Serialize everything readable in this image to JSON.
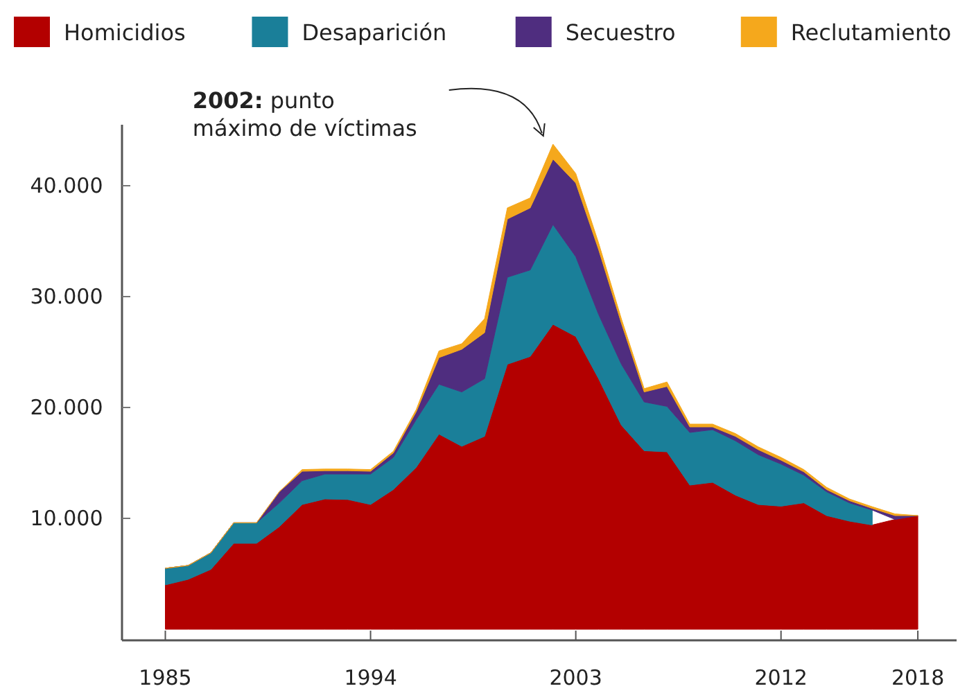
{
  "chart_data": {
    "type": "area",
    "stacked": true,
    "x": [
      1985,
      1986,
      1987,
      1988,
      1989,
      1990,
      1991,
      1992,
      1993,
      1994,
      1995,
      1996,
      1997,
      1998,
      1999,
      2000,
      2001,
      2002,
      2003,
      2004,
      2005,
      2006,
      2007,
      2008,
      2009,
      2010,
      2011,
      2012,
      2013,
      2014,
      2015,
      2016,
      2017,
      2018
    ],
    "series": [
      {
        "name": "Homicidios",
        "color": "#b30000",
        "values": [
          4000,
          4500,
          5400,
          7750,
          7750,
          9250,
          11250,
          11750,
          11700,
          11250,
          12600,
          14600,
          17600,
          16500,
          17400,
          23900,
          24600,
          27500,
          26400,
          22600,
          18400,
          16100,
          16000,
          13000,
          13250,
          12100,
          11250,
          11100,
          11400,
          10250,
          9750,
          9400,
          9900,
          10250
        ]
      },
      {
        "name": "Desaparición",
        "color": "#1a7f99",
        "values": [
          1500,
          1250,
          1500,
          1850,
          1850,
          2150,
          2150,
          2250,
          2300,
          2750,
          2900,
          4300,
          4500,
          4900,
          5200,
          7850,
          7800,
          9000,
          7200,
          5800,
          5500,
          4400,
          4100,
          4750,
          4750,
          4900,
          4500,
          3800,
          2500,
          2150,
          1650,
          1350,
          null,
          null
        ]
      },
      {
        "name": "Secuestro",
        "color": "#4f2d7f",
        "values": [
          0,
          0,
          0,
          0,
          0,
          1000,
          850,
          300,
          300,
          250,
          400,
          700,
          2400,
          3850,
          4150,
          5250,
          5600,
          5900,
          6650,
          5850,
          3700,
          900,
          1800,
          500,
          250,
          400,
          450,
          350,
          300,
          200,
          200,
          150,
          350,
          0
        ]
      },
      {
        "name": "Reclutamiento",
        "color": "#f5a81c",
        "values": [
          0,
          0,
          0,
          0,
          0,
          0,
          150,
          150,
          150,
          150,
          150,
          200,
          600,
          500,
          1250,
          1000,
          900,
          1350,
          850,
          600,
          400,
          300,
          400,
          250,
          250,
          250,
          250,
          250,
          200,
          200,
          150,
          150,
          150,
          0
        ]
      }
    ],
    "xlim": [
      1983.1,
      2019.7
    ],
    "xticks": [
      1985,
      1994,
      2003,
      2012,
      2018
    ],
    "ylim": [
      -1000,
      45500
    ],
    "yticks": [
      {
        "value": 10000,
        "label": "10.000"
      },
      {
        "value": 20000,
        "label": "20.000"
      },
      {
        "value": 30000,
        "label": "30.000"
      },
      {
        "value": 40000,
        "label": "40.000"
      }
    ],
    "legend": "top",
    "annotations": [
      "2002: punto máximo de víctimas"
    ]
  }
}
